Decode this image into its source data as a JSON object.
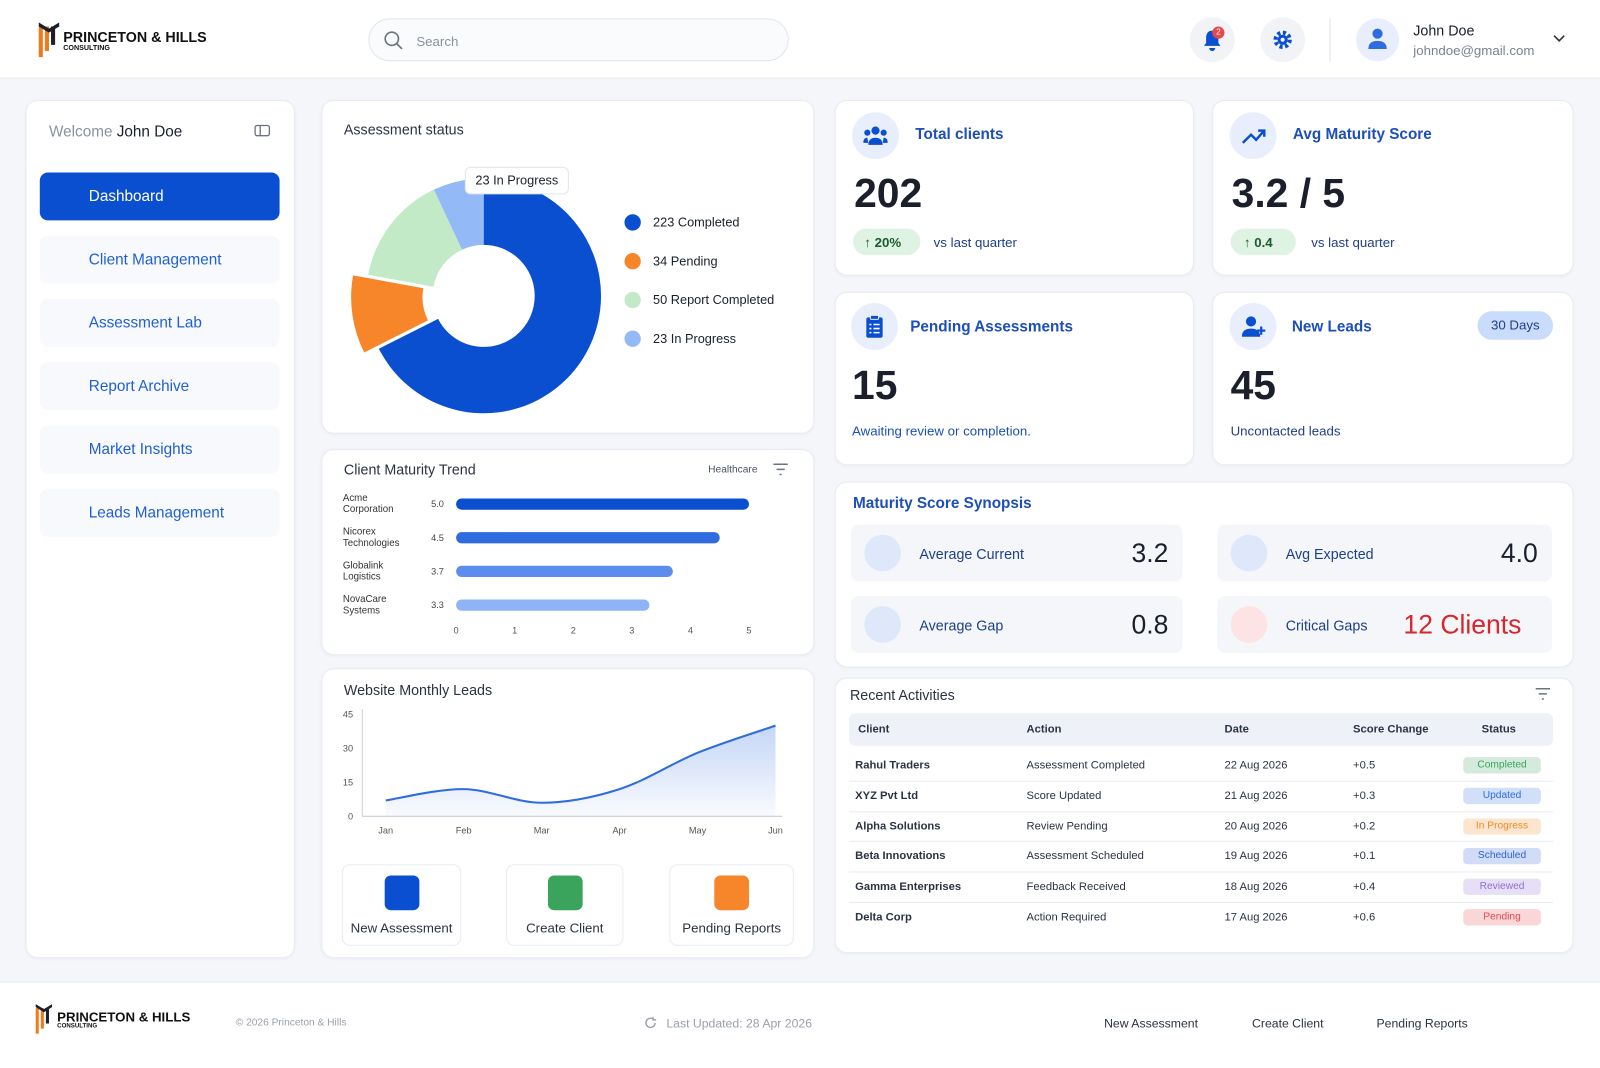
{
  "header": {
    "brand": "PRINCETON & HILLS",
    "brand_tagline": "CONSULTING",
    "search_placeholder": "Search",
    "notification_count": 2,
    "user_name": "John Doe",
    "user_email": "johndoe@gmail.com"
  },
  "sidebar": {
    "welcome": "Welcome",
    "user_name": "John Doe",
    "nav": [
      "Dashboard",
      "Client Management",
      "Assessment Lab",
      "Report Archive",
      "Market Insights",
      "Leads Management"
    ]
  },
  "assessment_status": {
    "type": "donut",
    "title": "Assessment status",
    "values": [
      223,
      34,
      50,
      23
    ],
    "value_labels": [
      "223 Completed",
      "34 Pending",
      "50 Report Completed",
      "23 In Progress"
    ],
    "colors": [
      "#0a4fd0",
      "#f7862a",
      "#c3eac6",
      "#93b9f7"
    ]
  },
  "maturity_trend": {
    "type": "hbar",
    "title": "Client Maturity Trend",
    "filter": "Healthcare",
    "categories": [
      "Acme Corporation",
      "Nicorex Technologies",
      "Globalink Logistics",
      "NovaCare Systems"
    ],
    "values": [
      5,
      4.5,
      3.7,
      3.3
    ],
    "value_labels": [
      "5.0",
      "4.5",
      "3.7",
      "3.3"
    ],
    "colors": [
      "#0a4fd0",
      "#2f6ce0",
      "#5a8ded",
      "#8fb4f5"
    ],
    "xlim": [
      0,
      5
    ],
    "xticks": [
      0,
      1,
      2,
      3,
      4,
      5
    ]
  },
  "monthly_leads": {
    "type": "area",
    "title": "Website Monthly Leads",
    "categories": [
      "Jan",
      "Feb",
      "Mar",
      "Apr",
      "May",
      "Jun"
    ],
    "values": [
      7,
      12,
      6,
      12,
      28,
      40
    ],
    "color": "#2f6ce0",
    "ylim": [
      0,
      45
    ],
    "yticks": [
      0,
      15,
      30,
      45
    ]
  },
  "quick_actions": [
    "New Assessment",
    "Create Client",
    "Pending Reports"
  ],
  "kpis": {
    "total_clients": {
      "title": "Total clients",
      "value": 202,
      "change": "20%",
      "note": "vs last quarter"
    },
    "avg_maturity": {
      "title": "Avg Maturity Score",
      "value": "3.2 / 5",
      "change": "0.4",
      "note": "vs last quarter"
    },
    "pending": {
      "title": "Pending Assessments",
      "value": 15,
      "note": "Awaiting review or completion."
    },
    "new_leads": {
      "title": "New Leads",
      "badge": "30 Days",
      "value": 45,
      "note": "Uncontacted leads"
    }
  },
  "synopsis": {
    "title": "Maturity Score Synopsis",
    "items": [
      {
        "label": "Average Current",
        "value": "3.2"
      },
      {
        "label": "Avg Expected",
        "value": "4.0"
      },
      {
        "label": "Average Gap",
        "value": "0.8"
      },
      {
        "label": "Critical Gaps",
        "value": "12 Clients"
      }
    ]
  },
  "activities": {
    "title": "Recent Activities",
    "columns": [
      "Client",
      "Action",
      "Date",
      "Score Change",
      "Status"
    ],
    "rows": [
      {
        "client": "Rahul Traders",
        "action": "Assessment Completed",
        "date": "22 Aug 2026",
        "score_change": "+0.5",
        "status": "Completed",
        "status_color": "#3aa35c"
      },
      {
        "client": "XYZ Pvt Ltd",
        "action": "Score Updated",
        "date": "21 Aug 2026",
        "score_change": "+0.3",
        "status": "Updated",
        "status_color": "#2f6ce0"
      },
      {
        "client": "Alpha Solutions",
        "action": "Review Pending",
        "date": "20 Aug 2026",
        "score_change": "+0.2",
        "status": "In Progress",
        "status_color": "#f08a24"
      },
      {
        "client": "Beta Innovations",
        "action": "Assessment Scheduled",
        "date": "19 Aug 2026",
        "score_change": "+0.1",
        "status": "Scheduled",
        "status_color": "#2c62d6"
      },
      {
        "client": "Gamma Enterprises",
        "action": "Feedback Received",
        "date": "18 Aug 2026",
        "score_change": "+0.4",
        "status": "Reviewed",
        "status_color": "#8e6fd8"
      },
      {
        "client": "Delta Corp",
        "action": "Action Required",
        "date": "17 Aug 2026",
        "score_change": "+0.6",
        "status": "Pending",
        "status_color": "#e5484d"
      }
    ]
  },
  "footer": {
    "brand": "PRINCETON & HILLS",
    "brand_tagline": "CONSULTING",
    "copyright": "© 2026 Princeton & Hills",
    "last_updated": "Last Updated: 28 Apr 2026",
    "links": [
      "New Assessment",
      "Create Client",
      "Pending Reports"
    ]
  }
}
